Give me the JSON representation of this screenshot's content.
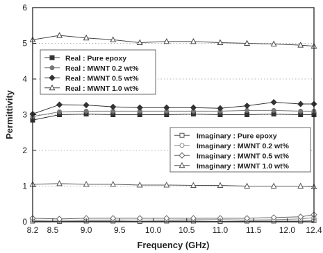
{
  "chart_data": {
    "type": "scatter",
    "xlabel": "Frequency (GHz)",
    "ylabel": "Permittivity",
    "xlim": [
      8.2,
      12.4
    ],
    "ylim": [
      0,
      6
    ],
    "x_ticks": [
      "8.2",
      "8.5",
      "9.0",
      "9.5",
      "10.0",
      "10.5",
      "11.0",
      "11.5",
      "12.0",
      "12.4"
    ],
    "y_ticks": [
      "0",
      "1",
      "2",
      "3",
      "4",
      "5",
      "6"
    ],
    "grid": "horizontal dotted",
    "legends": [
      {
        "placement": "upper-left",
        "entries": [
          {
            "label": "Real : Pure epoxy",
            "series": 0
          },
          {
            "label": "Real : MWNT 0.2 wt%",
            "series": 1
          },
          {
            "label": "Real : MWNT 0.5 wt%",
            "series": 2
          },
          {
            "label": "Real : MWNT 1.0 wt%",
            "series": 3
          }
        ]
      },
      {
        "placement": "center-right",
        "entries": [
          {
            "label": "Imaginary : Pure epoxy",
            "series": 4
          },
          {
            "label": "Imaginary : MWNT 0.2 wt%",
            "series": 5
          },
          {
            "label": "Imaginary : MWNT 0.5 wt%",
            "series": 6
          },
          {
            "label": "Imaginary : MWNT 1.0 wt%",
            "series": 7
          }
        ]
      }
    ],
    "series": [
      {
        "name": "Real : Pure epoxy",
        "marker": "square",
        "filled": true,
        "color": "#333333",
        "x": [
          8.2,
          8.6,
          9.0,
          9.4,
          9.8,
          10.2,
          10.6,
          11.0,
          11.4,
          11.8,
          12.2,
          12.4
        ],
        "y": [
          2.85,
          3.0,
          3.02,
          3.0,
          3.0,
          3.0,
          3.02,
          3.0,
          3.0,
          3.02,
          3.0,
          3.0
        ]
      },
      {
        "name": "Real : MWNT 0.2 wt%",
        "marker": "circle",
        "filled": true,
        "color": "#777777",
        "x": [
          8.2,
          8.6,
          9.0,
          9.4,
          9.8,
          10.2,
          10.6,
          11.0,
          11.4,
          11.8,
          12.2,
          12.4
        ],
        "y": [
          2.95,
          3.08,
          3.1,
          3.1,
          3.1,
          3.1,
          3.1,
          3.1,
          3.12,
          3.12,
          3.1,
          3.1
        ]
      },
      {
        "name": "Real : MWNT 0.5 wt%",
        "marker": "diamond",
        "filled": true,
        "color": "#333333",
        "x": [
          8.2,
          8.6,
          9.0,
          9.4,
          9.8,
          10.2,
          10.6,
          11.0,
          11.4,
          11.8,
          12.2,
          12.4
        ],
        "y": [
          3.02,
          3.28,
          3.27,
          3.22,
          3.2,
          3.2,
          3.2,
          3.18,
          3.25,
          3.35,
          3.3,
          3.3
        ]
      },
      {
        "name": "Real : MWNT 1.0 wt%",
        "marker": "triangle",
        "filled": false,
        "color": "#444444",
        "x": [
          8.2,
          8.6,
          9.0,
          9.4,
          9.8,
          10.2,
          10.6,
          11.0,
          11.4,
          11.8,
          12.2,
          12.4
        ],
        "y": [
          5.1,
          5.22,
          5.15,
          5.1,
          5.02,
          5.05,
          5.05,
          5.02,
          5.0,
          4.98,
          4.95,
          4.92
        ]
      },
      {
        "name": "Imaginary : Pure epoxy",
        "marker": "square",
        "filled": false,
        "color": "#555555",
        "x": [
          8.2,
          8.6,
          9.0,
          9.4,
          9.8,
          10.2,
          10.6,
          11.0,
          11.4,
          11.8,
          12.2,
          12.4
        ],
        "y": [
          0.02,
          0.01,
          0.02,
          0.02,
          0.01,
          0.02,
          0.02,
          0.01,
          0.02,
          0.02,
          0.02,
          0.03
        ]
      },
      {
        "name": "Imaginary : MWNT 0.2 wt%",
        "marker": "circle",
        "filled": false,
        "color": "#888888",
        "x": [
          8.2,
          8.6,
          9.0,
          9.4,
          9.8,
          10.2,
          10.6,
          11.0,
          11.4,
          11.8,
          12.2,
          12.4
        ],
        "y": [
          0.05,
          0.04,
          0.05,
          0.05,
          0.05,
          0.05,
          0.06,
          0.06,
          0.05,
          0.06,
          0.08,
          0.12
        ]
      },
      {
        "name": "Imaginary : MWNT 0.5 wt%",
        "marker": "diamond",
        "filled": false,
        "color": "#666666",
        "x": [
          8.2,
          8.6,
          9.0,
          9.4,
          9.8,
          10.2,
          10.6,
          11.0,
          11.4,
          11.8,
          12.2,
          12.4
        ],
        "y": [
          0.1,
          0.08,
          0.1,
          0.1,
          0.1,
          0.1,
          0.1,
          0.1,
          0.1,
          0.12,
          0.14,
          0.2
        ]
      },
      {
        "name": "Imaginary : MWNT 1.0 wt%",
        "marker": "triangle",
        "filled": false,
        "color": "#555555",
        "x": [
          8.2,
          8.6,
          9.0,
          9.4,
          9.8,
          10.2,
          10.6,
          11.0,
          11.4,
          11.8,
          12.2,
          12.4
        ],
        "y": [
          1.05,
          1.07,
          1.05,
          1.05,
          1.03,
          1.03,
          1.02,
          1.02,
          1.0,
          1.0,
          1.0,
          0.98
        ]
      }
    ]
  }
}
